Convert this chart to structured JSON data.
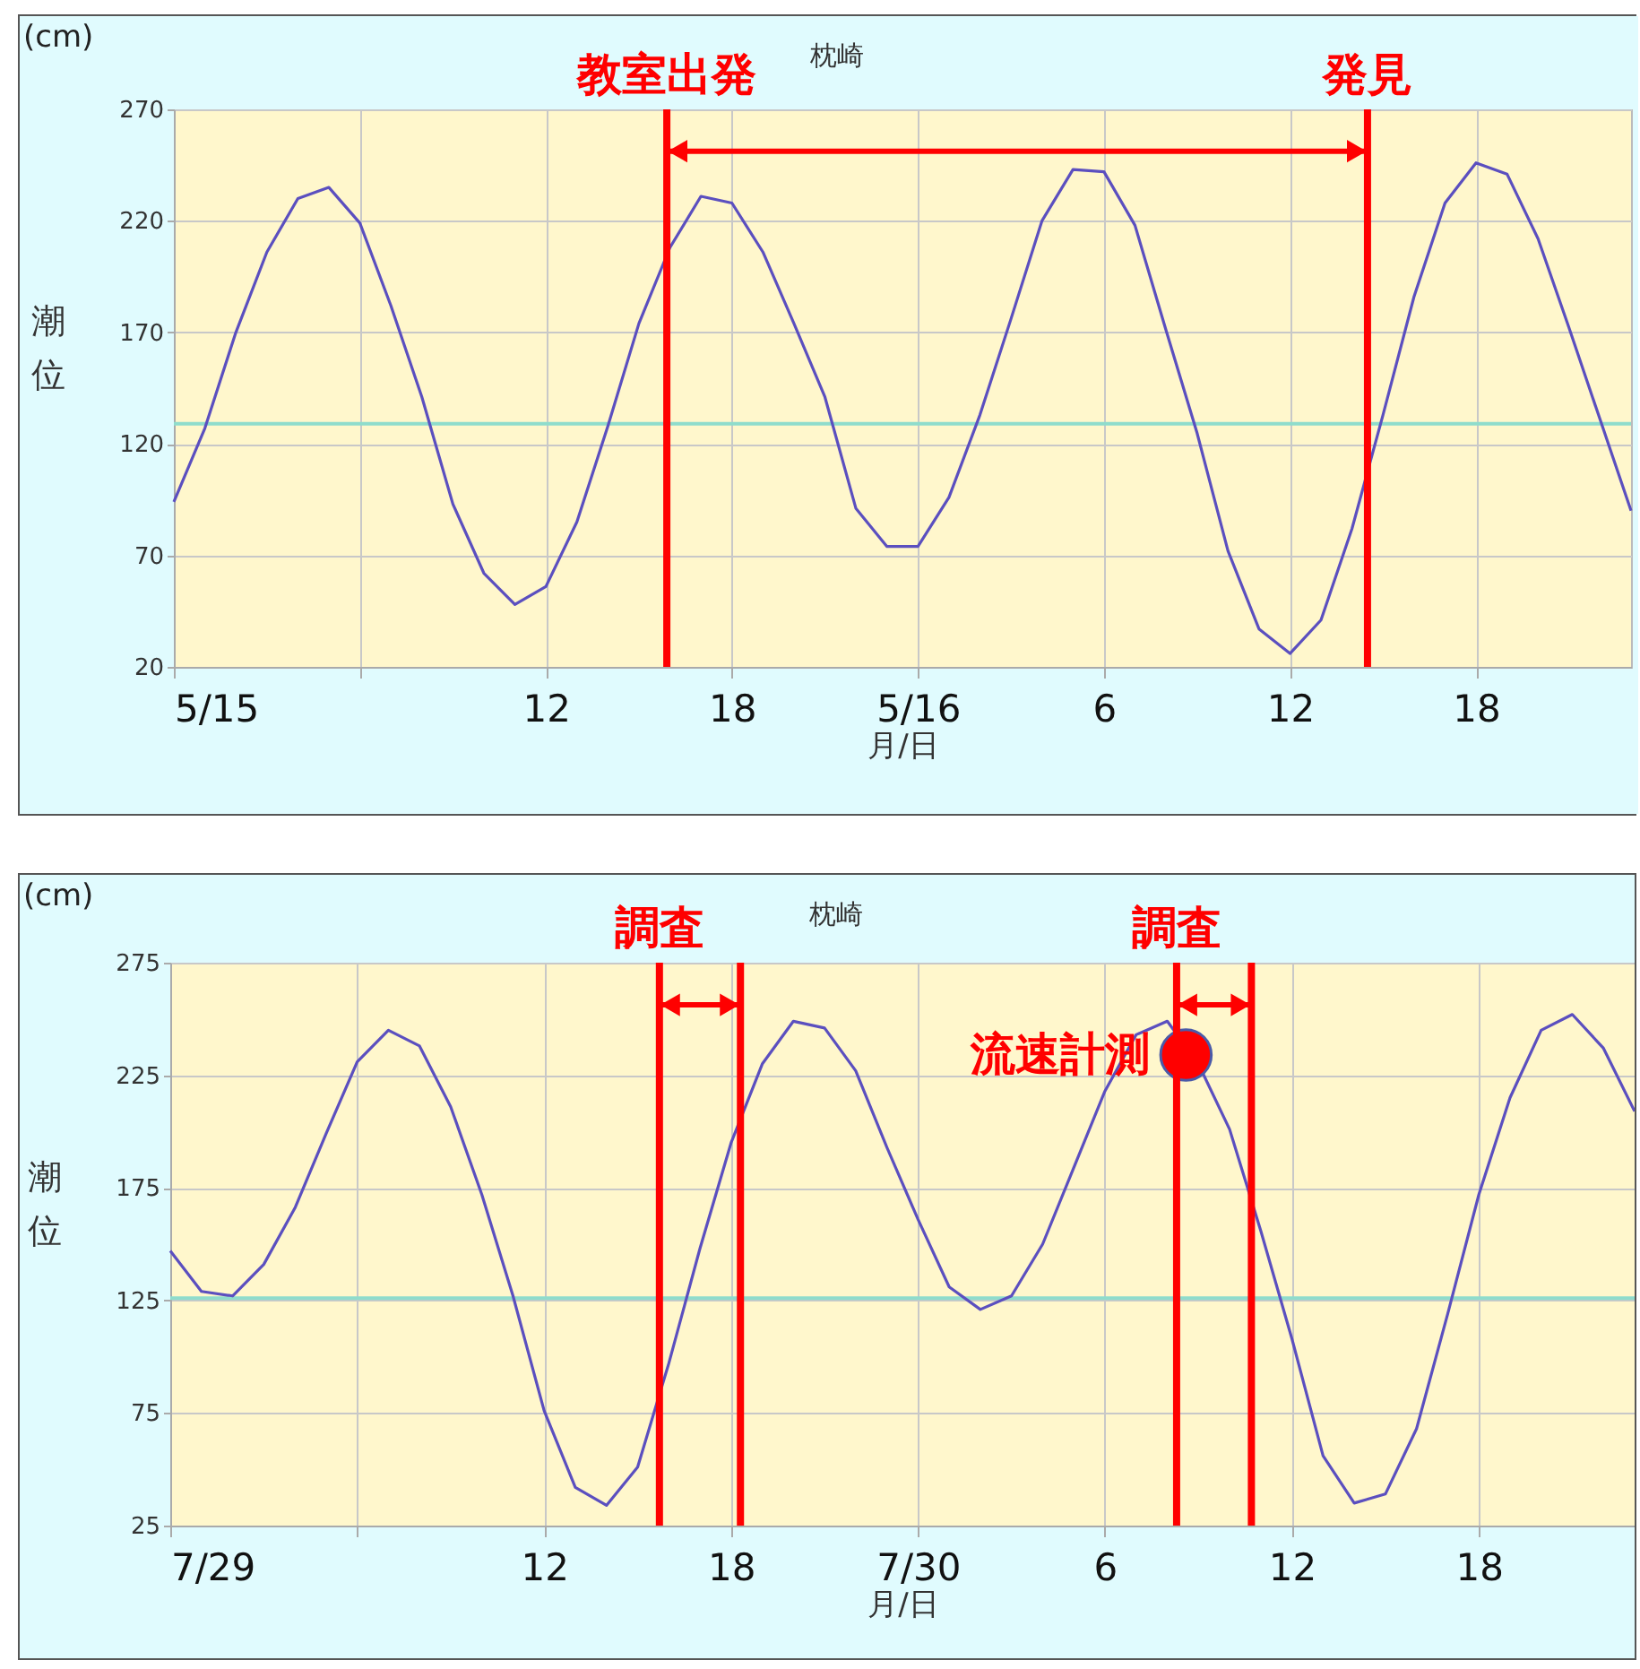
{
  "chart_data": [
    {
      "type": "line",
      "title": "枕崎",
      "xlabel": "月/日",
      "ylabel": "潮位",
      "annotations": [
        "(cm)"
      ],
      "x": [
        "--05-15T00:00",
        "--05-15T01:00",
        "--05-15T02:00",
        "--05-15T03:00",
        "--05-15T04:00",
        "--05-15T05:00",
        "--05-15T06:00",
        "--05-15T07:00",
        "--05-15T08:00",
        "--05-15T09:00",
        "--05-15T10:00",
        "--05-15T11:00",
        "--05-15T12:00",
        "--05-15T13:00",
        "--05-15T14:00",
        "--05-15T15:00",
        "--05-15T16:00",
        "--05-15T17:00",
        "--05-15T18:00",
        "--05-15T19:00",
        "--05-15T20:00",
        "--05-15T21:00",
        "--05-15T22:00",
        "--05-15T23:00",
        "--05-16T00:00",
        "--05-16T01:00",
        "--05-16T02:00",
        "--05-16T03:00",
        "--05-16T04:00",
        "--05-16T05:00",
        "--05-16T06:00",
        "--05-16T07:00",
        "--05-16T08:00",
        "--05-16T09:00",
        "--05-16T10:00",
        "--05-16T11:00",
        "--05-16T12:00",
        "--05-16T13:00",
        "--05-16T14:00",
        "--05-16T15:00",
        "--05-16T16:00",
        "--05-16T17:00",
        "--05-16T18:00",
        "--05-16T19:00",
        "--05-16T20:00",
        "--05-16T21:00",
        "--05-16T22:00",
        "--05-16T23:00"
      ],
      "series": [
        {
          "color": "#5b4fbf",
          "values": [
            94,
            127,
            170,
            206,
            230,
            235,
            219,
            182,
            141,
            93,
            62,
            48,
            56,
            85,
            128,
            174,
            208,
            231,
            228,
            206,
            174,
            141,
            91,
            74,
            74,
            96,
            133,
            176,
            220,
            243,
            242,
            218,
            171,
            125,
            72,
            37,
            26,
            41,
            82,
            133,
            186,
            228,
            246,
            241,
            212,
            172,
            131,
            90
          ]
        }
      ],
      "xlim": [
        "--05-15T00:00",
        "--05-16T23:00"
      ],
      "xticks": [
        {
          "value": "--05-15T00:00",
          "label": "5/15"
        },
        {
          "value": "--05-15T06:00",
          "label": null
        },
        {
          "value": "--05-15T12:00",
          "label": "12"
        },
        {
          "value": "--05-15T18:00",
          "label": "18"
        },
        {
          "value": "--05-16T00:00",
          "label": "5/16"
        },
        {
          "value": "--05-16T06:00",
          "label": "6"
        },
        {
          "value": "--05-16T12:00",
          "label": "12"
        },
        {
          "value": "--05-16T18:00",
          "label": "18"
        }
      ],
      "ylim": [
        20,
        270
      ],
      "yticks": [
        20,
        70,
        120,
        170,
        220,
        270
      ],
      "grid": true,
      "ref_lines": [
        {
          "axis": "y",
          "value": 129,
          "color": "#8fdccc"
        },
        {
          "axis": "x",
          "value": "--05-15T15:54",
          "label": "教室出発",
          "color": "#ff0000"
        },
        {
          "axis": "x",
          "value": "--05-16T14:30",
          "label": "発見",
          "color": "#ff0000"
        }
      ]
    },
    {
      "type": "line",
      "title": "枕崎",
      "xlabel": "月/日",
      "ylabel": "潮位",
      "annotations": [
        "(cm)",
        {
          "text": "流速計測",
          "x": "--07-30T08:36",
          "y": 234
        }
      ],
      "x": [
        "--07-29T00:00",
        "--07-29T01:00",
        "--07-29T02:00",
        "--07-29T03:00",
        "--07-29T04:00",
        "--07-29T05:00",
        "--07-29T06:00",
        "--07-29T07:00",
        "--07-29T08:00",
        "--07-29T09:00",
        "--07-29T10:00",
        "--07-29T11:00",
        "--07-29T12:00",
        "--07-29T13:00",
        "--07-29T14:00",
        "--07-29T15:00",
        "--07-29T16:00",
        "--07-29T17:00",
        "--07-29T18:00",
        "--07-29T19:00",
        "--07-29T20:00",
        "--07-29T21:00",
        "--07-29T22:00",
        "--07-29T23:00",
        "--07-30T00:00",
        "--07-30T01:00",
        "--07-30T02:00",
        "--07-30T03:00",
        "--07-30T04:00",
        "--07-30T05:00",
        "--07-30T06:00",
        "--07-30T07:00",
        "--07-30T08:00",
        "--07-30T09:00",
        "--07-30T10:00",
        "--07-30T11:00",
        "--07-30T12:00",
        "--07-30T13:00",
        "--07-30T14:00",
        "--07-30T15:00",
        "--07-30T16:00",
        "--07-30T17:00",
        "--07-30T18:00",
        "--07-30T19:00",
        "--07-30T20:00",
        "--07-30T21:00",
        "--07-30T22:00",
        "--07-30T23:00"
      ],
      "series": [
        {
          "color": "#5b4fbf",
          "values": [
            147,
            129,
            127,
            141,
            166,
            199,
            231,
            245,
            238,
            211,
            172,
            127,
            76,
            42,
            34,
            51,
            97,
            148,
            195,
            230,
            249,
            246,
            227,
            193,
            161,
            131,
            121,
            127,
            150,
            184,
            218,
            243,
            249,
            230,
            201,
            156,
            108,
            56,
            35,
            39,
            68,
            119,
            172,
            215,
            245,
            252,
            237,
            209
          ]
        },
        {
          "type": "scatter",
          "color": "#ff0000",
          "x": [
            "--07-30T08:36"
          ],
          "values": [
            234
          ]
        }
      ],
      "xlim": [
        "--07-29T00:00",
        "--07-30T23:00"
      ],
      "xticks": [
        {
          "value": "--07-29T00:00",
          "label": "7/29"
        },
        {
          "value": "--07-29T06:00",
          "label": null
        },
        {
          "value": "--07-29T12:00",
          "label": "12"
        },
        {
          "value": "--07-29T18:00",
          "label": "18"
        },
        {
          "value": "--07-30T00:00",
          "label": "7/30"
        },
        {
          "value": "--07-30T06:00",
          "label": "6"
        },
        {
          "value": "--07-30T12:00",
          "label": "12"
        },
        {
          "value": "--07-30T18:00",
          "label": "18"
        }
      ],
      "ylim": [
        25,
        275
      ],
      "yticks": [
        25,
        75,
        125,
        175,
        225,
        275
      ],
      "grid": true,
      "ref_lines": [
        {
          "axis": "y",
          "value": 126,
          "color": "#8fdccc"
        },
        {
          "axis": "x",
          "value": "--07-29T15:42",
          "label": "調査",
          "color": "#ff0000"
        },
        {
          "axis": "x",
          "value": "--07-29T18:18",
          "color": "#ff0000"
        },
        {
          "axis": "x",
          "value": "--07-30T08:18",
          "label": "調査",
          "color": "#ff0000"
        },
        {
          "axis": "x",
          "value": "--07-30T10:42",
          "color": "#ff0000"
        }
      ]
    }
  ]
}
